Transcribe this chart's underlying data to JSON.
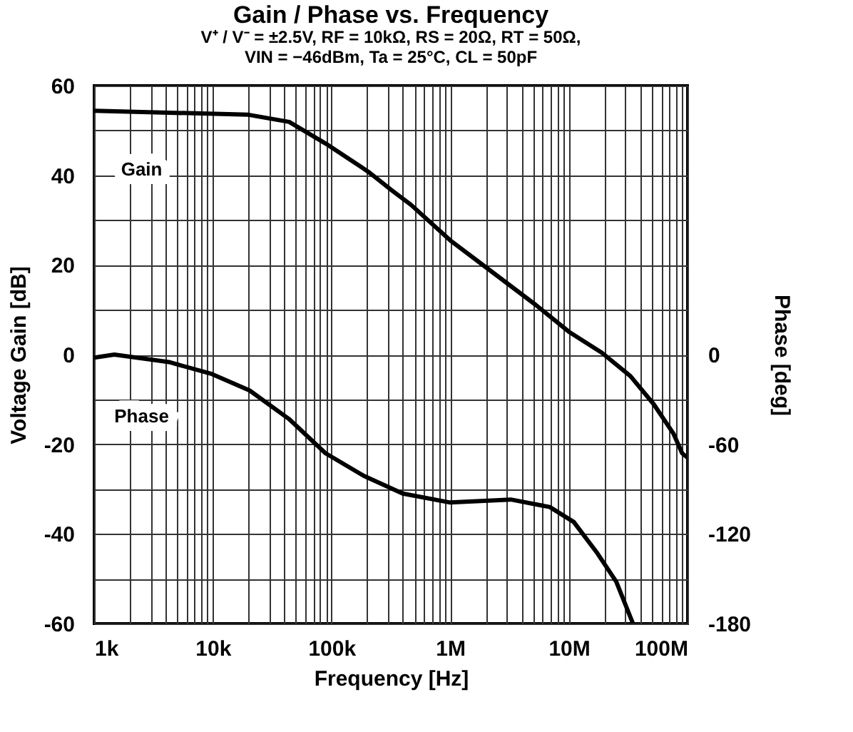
{
  "chart_data": {
    "type": "line",
    "title": "Gain / Phase vs. Frequency",
    "subtitle": "V⁺ / V⁻ = ±2.5V, RF = 10kΩ, RS = 20Ω, RT = 50Ω,\nVIN = −46dBm, Ta = 25°C, CL = 50pF",
    "xlabel": "Frequency [Hz]",
    "ylabel": "Voltage Gain [dB]",
    "y2label": "Phase [deg]",
    "log": "x",
    "grid": true,
    "line_style": "solid",
    "marker": "none",
    "xlim": [
      1000,
      100000000
    ],
    "xticks": [
      {
        "value": 1000,
        "label": "1k"
      },
      {
        "value": 2000,
        "label": null
      },
      {
        "value": 3000,
        "label": null
      },
      {
        "value": 4000,
        "label": null
      },
      {
        "value": 5000,
        "label": null
      },
      {
        "value": 6000,
        "label": null
      },
      {
        "value": 7000,
        "label": null
      },
      {
        "value": 8000,
        "label": null
      },
      {
        "value": 9000,
        "label": null
      },
      {
        "value": 10000,
        "label": "10k"
      },
      {
        "value": 20000,
        "label": null
      },
      {
        "value": 30000,
        "label": null
      },
      {
        "value": 40000,
        "label": null
      },
      {
        "value": 50000,
        "label": null
      },
      {
        "value": 60000,
        "label": null
      },
      {
        "value": 70000,
        "label": null
      },
      {
        "value": 80000,
        "label": null
      },
      {
        "value": 90000,
        "label": null
      },
      {
        "value": 100000,
        "label": "100k"
      },
      {
        "value": 200000,
        "label": null
      },
      {
        "value": 300000,
        "label": null
      },
      {
        "value": 400000,
        "label": null
      },
      {
        "value": 500000,
        "label": null
      },
      {
        "value": 600000,
        "label": null
      },
      {
        "value": 700000,
        "label": null
      },
      {
        "value": 800000,
        "label": null
      },
      {
        "value": 900000,
        "label": null
      },
      {
        "value": 1000000,
        "label": "1M"
      },
      {
        "value": 2000000,
        "label": null
      },
      {
        "value": 3000000,
        "label": null
      },
      {
        "value": 4000000,
        "label": null
      },
      {
        "value": 5000000,
        "label": null
      },
      {
        "value": 6000000,
        "label": null
      },
      {
        "value": 7000000,
        "label": null
      },
      {
        "value": 8000000,
        "label": null
      },
      {
        "value": 9000000,
        "label": null
      },
      {
        "value": 10000000,
        "label": "10M"
      },
      {
        "value": 20000000,
        "label": null
      },
      {
        "value": 30000000,
        "label": null
      },
      {
        "value": 40000000,
        "label": null
      },
      {
        "value": 50000000,
        "label": null
      },
      {
        "value": 60000000,
        "label": null
      },
      {
        "value": 70000000,
        "label": null
      },
      {
        "value": 80000000,
        "label": null
      },
      {
        "value": 90000000,
        "label": null
      },
      {
        "value": 100000000,
        "label": "100M"
      }
    ],
    "ylim": [
      -60,
      60
    ],
    "yticks": [
      -60,
      {
        "value": -50,
        "label": null
      },
      -40,
      {
        "value": -30,
        "label": null
      },
      -20,
      {
        "value": -10,
        "label": null
      },
      0,
      {
        "value": 10,
        "label": null
      },
      20,
      {
        "value": 30,
        "label": null
      },
      40,
      {
        "value": 50,
        "label": null
      },
      60
    ],
    "y2lim": [
      -180,
      180
    ],
    "y2ticks": [
      -180,
      -120,
      -60,
      0
    ],
    "series": [
      {
        "name": "Gain",
        "color": "#000000",
        "x": [
          1000,
          20000,
          44000,
          89000,
          204000,
          324000,
          468000,
          1000000,
          2090000,
          5250000,
          10000000,
          19000000,
          33000000,
          52000000,
          76000000,
          90000000,
          100000000
        ],
        "values": [
          54.4,
          53.5,
          51.9,
          47.1,
          40.8,
          36.6,
          33.4,
          25.5,
          19.1,
          11.1,
          5.1,
          0.4,
          -4.8,
          -11.1,
          -17.6,
          -22,
          -23
        ]
      },
      {
        "name": "Phase",
        "color": "#000000",
        "axis": "y2",
        "x": [
          1000,
          1480,
          4270,
          9800,
          20400,
          43700,
          89000,
          186000,
          398000,
          1000000,
          3240000,
          6900000,
          11000000,
          17400000,
          25100000,
          34700000
        ],
        "values": [
          -2,
          0,
          -5,
          -13,
          -24,
          -43,
          -66,
          -81,
          -93,
          -99,
          -97,
          -102,
          -112,
          -133,
          -152,
          -180
        ]
      }
    ]
  }
}
